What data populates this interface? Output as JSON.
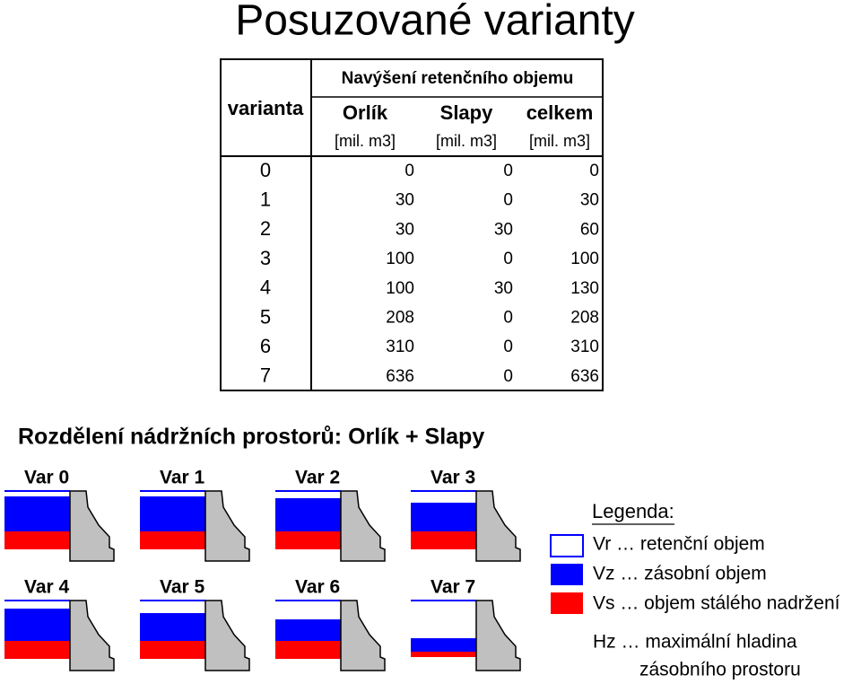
{
  "title": "Posuzované varianty",
  "table": {
    "header": {
      "row_label": "varianta",
      "group": "Navýšení retenčního objemu",
      "columns": [
        "Orlík",
        "Slapy",
        "celkem"
      ],
      "units": [
        "[mil. m3]",
        "[mil. m3]",
        "[mil. m3]"
      ]
    },
    "rows": [
      [
        0,
        0,
        0,
        0
      ],
      [
        1,
        30,
        0,
        30
      ],
      [
        2,
        30,
        30,
        60
      ],
      [
        3,
        100,
        0,
        100
      ],
      [
        4,
        100,
        30,
        130
      ],
      [
        5,
        208,
        0,
        208
      ],
      [
        6,
        310,
        0,
        310
      ],
      [
        7,
        636,
        0,
        636
      ]
    ]
  },
  "diagram": {
    "title": "Rozdělení nádržních prostorů: Orlík + Slapy",
    "variants": [
      "Var 0",
      "Var 1",
      "Var 2",
      "Var 3",
      "Var 4",
      "Var 5",
      "Var 6",
      "Var 7"
    ]
  },
  "legend": {
    "title": "Legenda:",
    "items": [
      "Vr … retenční objem",
      "Vz … zásobní objem",
      "Vs … objem stálého nadržení"
    ],
    "note": [
      "Hz … maximální hladina",
      "zásobního prostoru"
    ]
  }
}
